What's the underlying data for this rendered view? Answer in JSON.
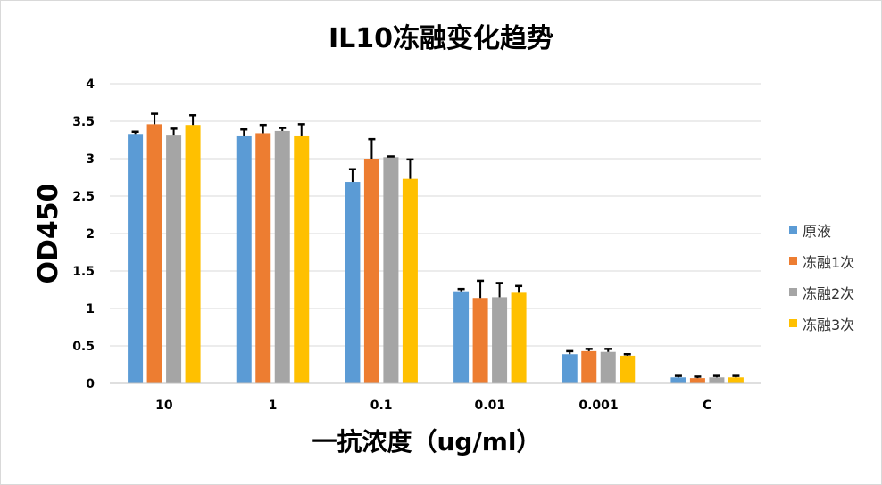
{
  "chart_data": {
    "type": "bar",
    "title": "IL10冻融变化趋势",
    "xlabel": "一抗浓度（ug/ml）",
    "ylabel": "OD450",
    "ylim": [
      0,
      4
    ],
    "yticks": [
      "0",
      "0.5",
      "1",
      "1.5",
      "2",
      "2.5",
      "3",
      "3.5",
      "4"
    ],
    "grid": true,
    "legend_position": "right",
    "categories": [
      "10",
      "1",
      "0.1",
      "0.01",
      "0.001",
      "C"
    ],
    "series": [
      {
        "name": "原液",
        "color": "#5b9bd5",
        "values": [
          3.33,
          3.31,
          2.69,
          1.23,
          0.39,
          0.08
        ],
        "errors": [
          0.03,
          0.08,
          0.17,
          0.03,
          0.04,
          0.02
        ]
      },
      {
        "name": "冻融1次",
        "color": "#ed7d31",
        "values": [
          3.46,
          3.34,
          3.0,
          1.14,
          0.43,
          0.07
        ],
        "errors": [
          0.14,
          0.11,
          0.26,
          0.23,
          0.03,
          0.02
        ]
      },
      {
        "name": "冻融2次",
        "color": "#a5a5a5",
        "values": [
          3.32,
          3.37,
          3.02,
          1.15,
          0.42,
          0.08
        ],
        "errors": [
          0.08,
          0.04,
          0.01,
          0.19,
          0.04,
          0.02
        ]
      },
      {
        "name": "冻融3次",
        "color": "#ffc000",
        "values": [
          3.45,
          3.31,
          2.73,
          1.21,
          0.37,
          0.08
        ],
        "errors": [
          0.13,
          0.15,
          0.26,
          0.09,
          0.02,
          0.02
        ]
      }
    ]
  }
}
